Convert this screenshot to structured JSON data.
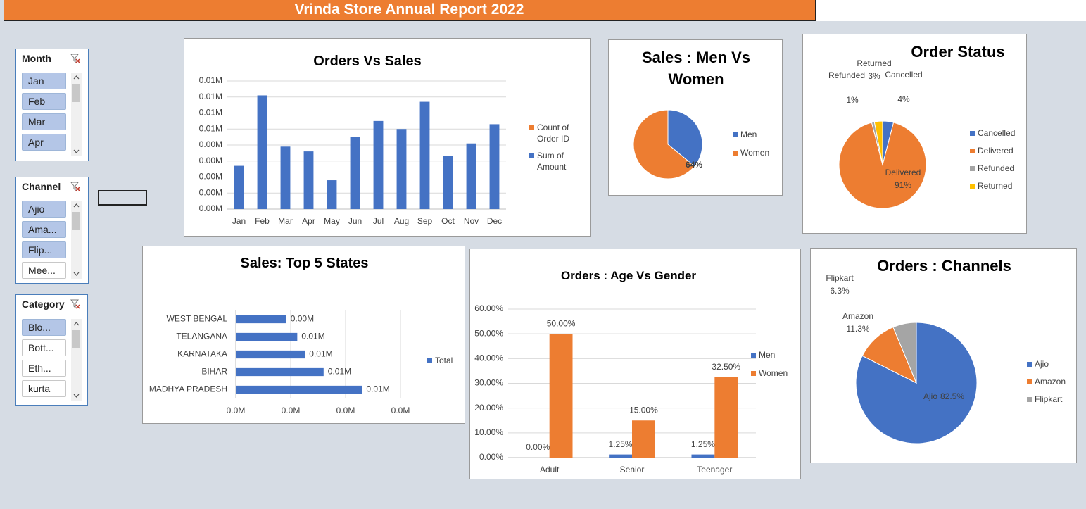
{
  "header": {
    "title": "Vrinda Store Annual Report 2022"
  },
  "slicers": [
    {
      "title": "Month",
      "items": [
        {
          "label": "Jan",
          "selected": true
        },
        {
          "label": "Feb",
          "selected": true
        },
        {
          "label": "Mar",
          "selected": true
        },
        {
          "label": "Apr",
          "selected": true
        }
      ]
    },
    {
      "title": "Channel",
      "items": [
        {
          "label": "Ajio",
          "selected": true
        },
        {
          "label": "Ama...",
          "selected": true
        },
        {
          "label": "Flip...",
          "selected": true
        },
        {
          "label": "Mee...",
          "selected": false
        }
      ]
    },
    {
      "title": "Category",
      "items": [
        {
          "label": "Blo...",
          "selected": true
        },
        {
          "label": "Bott...",
          "selected": false
        },
        {
          "label": "Eth...",
          "selected": false
        },
        {
          "label": "kurta",
          "selected": false
        }
      ]
    }
  ],
  "chart_data": [
    {
      "type": "bar",
      "title": "Orders Vs Sales",
      "categories": [
        "Jan",
        "Feb",
        "Mar",
        "Apr",
        "May",
        "Jun",
        "Jul",
        "Aug",
        "Sep",
        "Oct",
        "Nov",
        "Dec"
      ],
      "series": [
        {
          "name": "Count of Order ID",
          "color": "#ed7d31",
          "values": [
            null,
            null,
            null,
            null,
            null,
            null,
            null,
            null,
            null,
            null,
            null,
            null
          ]
        },
        {
          "name": "Sum of Amount",
          "color": "#4472c4",
          "values": [
            0.0027,
            0.0071,
            0.0039,
            0.0036,
            0.0018,
            0.0045,
            0.0055,
            0.005,
            0.0067,
            0.0033,
            0.0041,
            0.0053
          ]
        }
      ],
      "ylim": [
        0,
        0.008
      ],
      "yticks": [
        {
          "value": 0,
          "label": "0.00M"
        },
        {
          "value": 0.001,
          "label": "0.00M"
        },
        {
          "value": 0.002,
          "label": "0.00M"
        },
        {
          "value": 0.003,
          "label": "0.00M"
        },
        {
          "value": 0.004,
          "label": "0.00M"
        },
        {
          "value": 0.005,
          "label": "0.01M"
        },
        {
          "value": 0.006,
          "label": "0.01M"
        },
        {
          "value": 0.007,
          "label": "0.01M"
        },
        {
          "value": 0.008,
          "label": "0.01M"
        }
      ],
      "grid": true
    },
    {
      "type": "pie",
      "title": "Sales : Men Vs Women",
      "categories": [
        "Men",
        "Women"
      ],
      "values": [
        36,
        64
      ],
      "value_labels": [
        null,
        "64%"
      ],
      "colors": [
        "#4472c4",
        "#ed7d31"
      ]
    },
    {
      "type": "pie",
      "title": "Order Status",
      "categories": [
        "Cancelled",
        "Delivered",
        "Refunded",
        "Returned"
      ],
      "values": [
        4,
        91,
        1,
        3
      ],
      "value_labels": [
        "4%",
        "91%",
        "1%",
        "3%"
      ],
      "colors": [
        "#4472c4",
        "#ed7d31",
        "#a5a5a5",
        "#ffc000"
      ]
    },
    {
      "type": "hbar",
      "title": "Sales: Top 5 States",
      "categories": [
        "WEST BENGAL",
        "TELANGANA",
        "KARNATAKA",
        "BIHAR",
        "MADHYA PRADESH"
      ],
      "series": [
        {
          "name": "Total",
          "color": "#4472c4",
          "values": [
            0.0046,
            0.0056,
            0.0063,
            0.008,
            0.0115
          ],
          "value_labels": [
            "0.00M",
            "0.01M",
            "0.01M",
            "0.01M",
            "0.01M"
          ]
        }
      ],
      "xlim": [
        0,
        0.015
      ],
      "xticks": [
        {
          "value": 0,
          "label": "0.0M"
        },
        {
          "value": 0.005,
          "label": "0.0M"
        },
        {
          "value": 0.01,
          "label": "0.0M"
        },
        {
          "value": 0.015,
          "label": "0.0M"
        }
      ],
      "grid": true
    },
    {
      "type": "bar",
      "title": "Orders : Age Vs Gender",
      "categories": [
        "Adult",
        "Senior",
        "Teenager"
      ],
      "series": [
        {
          "name": "Men",
          "color": "#4472c4",
          "values": [
            0,
            1.25,
            1.25
          ],
          "value_labels": [
            "0.00%",
            "1.25%",
            "1.25%"
          ]
        },
        {
          "name": "Women",
          "color": "#ed7d31",
          "values": [
            50,
            15,
            32.5
          ],
          "value_labels": [
            "50.00%",
            "15.00%",
            "32.50%"
          ]
        }
      ],
      "ylim": [
        0,
        60
      ],
      "yticks": [
        {
          "value": 0,
          "label": "0.00%"
        },
        {
          "value": 10,
          "label": "10.00%"
        },
        {
          "value": 20,
          "label": "20.00%"
        },
        {
          "value": 30,
          "label": "30.00%"
        },
        {
          "value": 40,
          "label": "40.00%"
        },
        {
          "value": 50,
          "label": "50.00%"
        },
        {
          "value": 60,
          "label": "60.00%"
        }
      ],
      "grid": true
    },
    {
      "type": "pie",
      "title": "Orders : Channels",
      "categories": [
        "Ajio",
        "Amazon",
        "Flipkart"
      ],
      "values": [
        82.5,
        11.3,
        6.3
      ],
      "value_labels": [
        "82.5%",
        "11.3%",
        "6.3%"
      ],
      "colors": [
        "#4472c4",
        "#ed7d31",
        "#a5a5a5"
      ]
    }
  ]
}
